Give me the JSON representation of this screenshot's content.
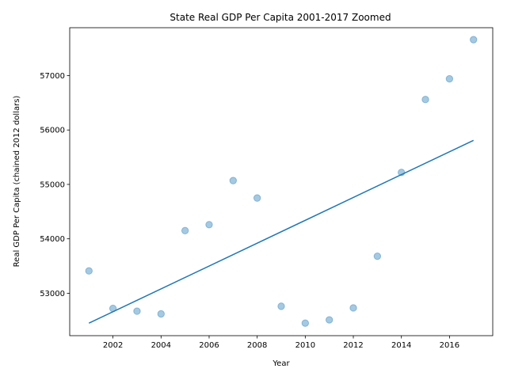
{
  "chart_data": {
    "type": "scatter",
    "title": "State Real GDP Per Capita 2001-2017 Zoomed",
    "xlabel": "Year",
    "ylabel": "Real GDP Per Capita (chained 2012 dollars)",
    "xlim": [
      2000.2,
      2017.8
    ],
    "ylim": [
      52220,
      57880
    ],
    "x_ticks": [
      2002,
      2004,
      2006,
      2008,
      2010,
      2012,
      2014,
      2016
    ],
    "y_ticks": [
      53000,
      54000,
      55000,
      56000,
      57000
    ],
    "grid": false,
    "legend": "none",
    "points": [
      {
        "x": 2001,
        "y": 53410
      },
      {
        "x": 2002,
        "y": 52720
      },
      {
        "x": 2003,
        "y": 52670
      },
      {
        "x": 2004,
        "y": 52620
      },
      {
        "x": 2005,
        "y": 54150
      },
      {
        "x": 2006,
        "y": 54260
      },
      {
        "x": 2007,
        "y": 55070
      },
      {
        "x": 2008,
        "y": 54750
      },
      {
        "x": 2009,
        "y": 52760
      },
      {
        "x": 2010,
        "y": 52450
      },
      {
        "x": 2011,
        "y": 52510
      },
      {
        "x": 2012,
        "y": 52730
      },
      {
        "x": 2013,
        "y": 53680
      },
      {
        "x": 2014,
        "y": 55220
      },
      {
        "x": 2015,
        "y": 56560
      },
      {
        "x": 2016,
        "y": 56940
      },
      {
        "x": 2017,
        "y": 57660
      }
    ],
    "trendline": {
      "x": [
        2001,
        2017
      ],
      "y": [
        52450,
        55810
      ]
    },
    "colors": {
      "points": "#1f77b4",
      "line": "#1f77b4"
    }
  }
}
